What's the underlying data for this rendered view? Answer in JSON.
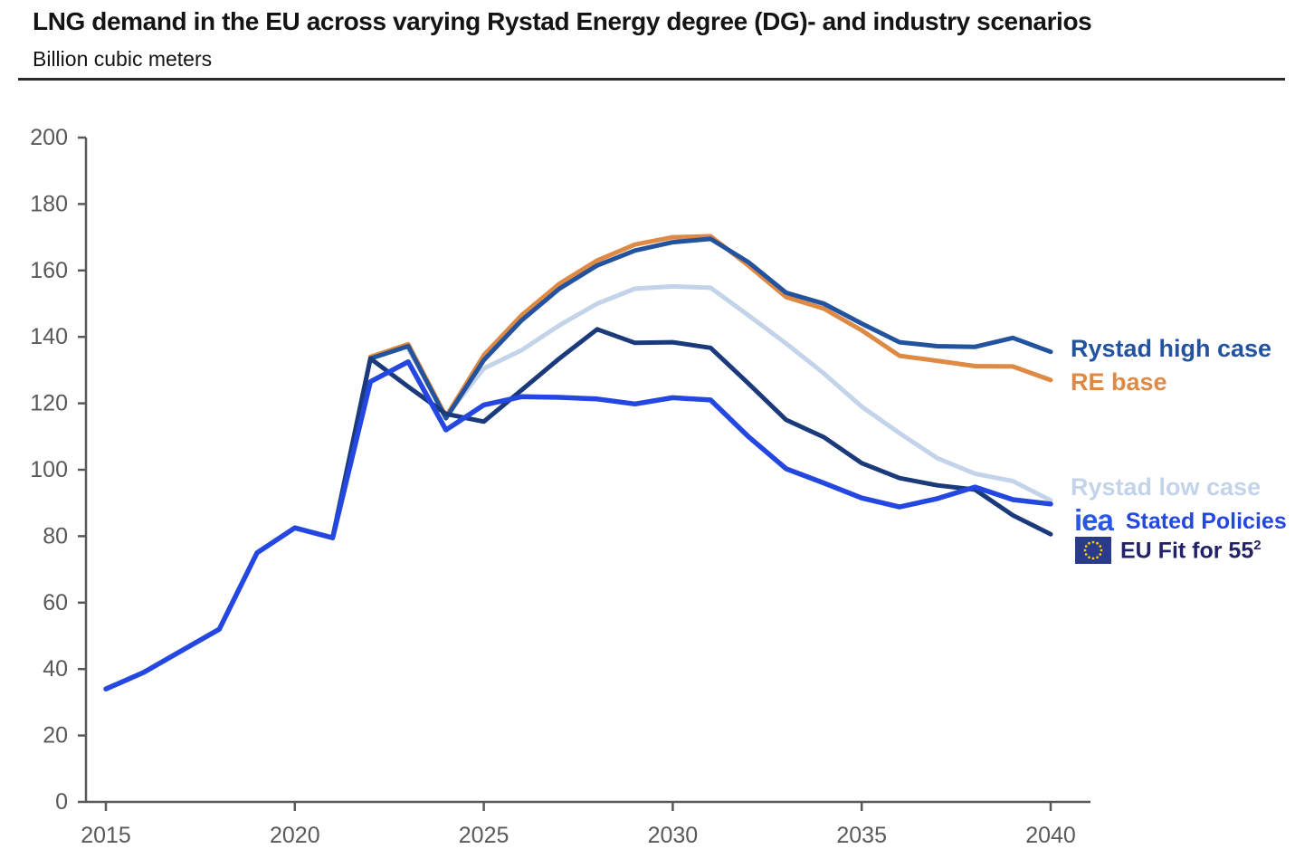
{
  "header": {
    "title": "LNG demand in the EU across varying Rystad Energy degree (DG)- and industry scenarios",
    "subtitle": "Billion cubic meters"
  },
  "colors": {
    "title_text": "#141414",
    "axis_line": "#595959",
    "axis_label": "#595959",
    "rystad_high": "#23529E",
    "re_base": "#DF8A44",
    "rystad_low": "#C3D3E9",
    "stated_policies": "#2447E1",
    "eu_fit_line": "#1B3A7B",
    "eu_fit_text": "#232168",
    "iea_logo": "#2B57E8",
    "eu_flag_bg": "#2B3B8C",
    "eu_flag_stars": "#F5C900"
  },
  "chart_data": {
    "type": "line",
    "title": "LNG demand in the EU across varying Rystad Energy degree (DG)- and industry scenarios",
    "ylabel": "Billion cubic meters",
    "xlabel": "",
    "ylim": [
      0,
      200
    ],
    "ytick_step": 20,
    "x_ticks": [
      2015,
      2020,
      2025,
      2030,
      2035,
      2040
    ],
    "xlim": [
      2015,
      2040
    ],
    "grid": false,
    "legend_position": "right-of-line-ends",
    "series": [
      {
        "name": "Rystad low case",
        "color": "#C3D3E9",
        "start_year": 2023,
        "values": [
          136.5,
          116,
          130.5,
          136,
          143.5,
          150,
          154.5,
          155.2,
          154.8,
          146.5,
          138,
          129,
          119,
          111,
          103.5,
          98.8,
          96.6,
          90.8
        ]
      },
      {
        "name": "RE base",
        "color": "#DF8A44",
        "start_year": 2022,
        "values": [
          134,
          137.8,
          116,
          134.5,
          146.5,
          156,
          163,
          167.8,
          170,
          170.3,
          161.5,
          152,
          148.5,
          142,
          134.3,
          132.8,
          131.2,
          131.1,
          127
        ]
      },
      {
        "name": "Rystad high case",
        "color": "#23529E",
        "start_year": 2021,
        "values": [
          79.5,
          133.5,
          137.2,
          115.5,
          133,
          145,
          154.5,
          161.5,
          166,
          168.5,
          169.5,
          162.5,
          153.3,
          150,
          144,
          138.4,
          137.2,
          137,
          139.7,
          135.5
        ]
      },
      {
        "name": "EU Fit for 55",
        "color": "#1B3A7B",
        "start_year": 2021,
        "values": [
          79.5,
          133.5,
          125,
          116.8,
          114.5,
          124,
          133.5,
          142.3,
          138.2,
          138.4,
          136.7,
          126,
          115,
          109.8,
          102,
          97.5,
          95.3,
          94,
          86.3,
          80.6
        ]
      },
      {
        "name": "Stated Policies",
        "color": "#2447E1",
        "start_year": 2015,
        "values": [
          34,
          39,
          45.5,
          52,
          75,
          82.5,
          79.5,
          126.5,
          132.5,
          112,
          119.5,
          122,
          121.8,
          121.3,
          119.8,
          121.7,
          121,
          110,
          100.3,
          96,
          91.5,
          88.8,
          91.3,
          94.8,
          91,
          89.7
        ]
      }
    ]
  },
  "legend": {
    "rystad_high": "Rystad high case",
    "re_base": "RE base",
    "rystad_low": "Rystad low case",
    "iea_logo": "iea",
    "stated_policies": "Stated Policies",
    "eu_fit": "EU Fit for 55",
    "eu_fit_sup": "2"
  }
}
